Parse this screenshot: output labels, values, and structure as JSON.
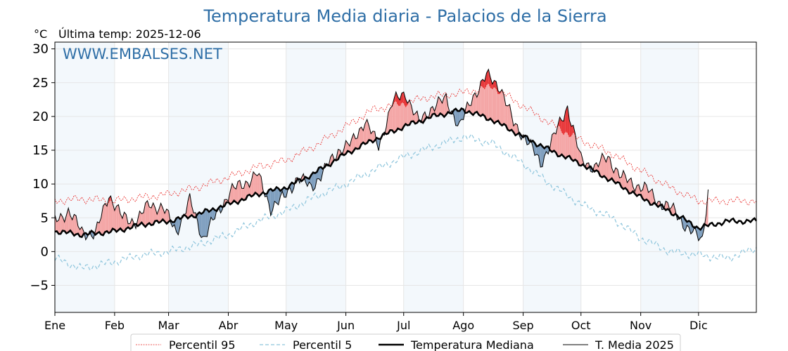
{
  "header": {
    "title": "Temperatura Media diaria - Palacios de la Sierra",
    "unit": "°C",
    "last_temp": "Última temp: 2025-12-06",
    "watermark": "WWW.EMBALSES.NET"
  },
  "colors": {
    "title": "#2e6ea6",
    "p95": "#e8211e",
    "p5": "#8ec5dc",
    "median": "#000000",
    "current": "#000000",
    "above_fill": "#f4a6a6",
    "above_p95_fill": "#e8383a",
    "below_fill": "#7f9fbf",
    "below_p5_fill": "#2a5f93",
    "band": "#f3f8fc"
  },
  "chart_data": {
    "type": "line",
    "title": "Temperatura Media diaria - Palacios de la Sierra",
    "ylabel": "°C",
    "ylim": [
      -9,
      31
    ],
    "yticks": [
      30,
      25,
      20,
      15,
      10,
      5,
      0,
      -5
    ],
    "ytick_labels": [
      "30",
      "25",
      "20",
      "15",
      "10",
      "5",
      "0",
      "−5"
    ],
    "months": [
      "Ene",
      "Feb",
      "Mar",
      "Abr",
      "May",
      "Jun",
      "Jul",
      "Ago",
      "Sep",
      "Oct",
      "Nov",
      "Dic"
    ],
    "month_start_days": [
      1,
      32,
      60,
      91,
      121,
      152,
      182,
      213,
      244,
      274,
      305,
      335
    ],
    "x_range_days": [
      1,
      365
    ],
    "grid": true,
    "legend_position": "bottom",
    "series_knots": {
      "p95": {
        "name": "Percentil 95",
        "days": [
          1,
          15,
          32,
          46,
          60,
          75,
          91,
          106,
          121,
          135,
          152,
          166,
          182,
          197,
          213,
          228,
          244,
          258,
          274,
          290,
          305,
          320,
          335,
          350,
          365
        ],
        "values": [
          7.5,
          7.8,
          7.5,
          8.0,
          8.5,
          9.5,
          11.0,
          12.5,
          13.5,
          15.5,
          18.5,
          21.0,
          22.0,
          23.0,
          23.5,
          24.5,
          21.5,
          19.0,
          16.5,
          14.5,
          12.0,
          9.5,
          7.5,
          7.5,
          7.5
        ]
      },
      "p5": {
        "name": "Percentil 5",
        "days": [
          1,
          15,
          32,
          46,
          60,
          75,
          91,
          106,
          121,
          135,
          152,
          166,
          182,
          197,
          213,
          228,
          244,
          258,
          274,
          290,
          305,
          320,
          335,
          350,
          365
        ],
        "values": [
          -1.0,
          -2.5,
          -1.5,
          -0.5,
          0.0,
          1.0,
          2.5,
          4.5,
          6.0,
          8.0,
          10.0,
          12.0,
          14.0,
          15.5,
          17.0,
          16.0,
          13.0,
          10.0,
          7.0,
          5.0,
          2.0,
          0.0,
          -0.5,
          -1.0,
          0.5
        ]
      },
      "median": {
        "name": "Temperatura Mediana",
        "days": [
          1,
          15,
          32,
          46,
          60,
          75,
          91,
          106,
          121,
          135,
          152,
          166,
          182,
          197,
          213,
          228,
          244,
          258,
          274,
          290,
          305,
          320,
          335,
          350,
          365
        ],
        "values": [
          3.0,
          2.5,
          3.0,
          4.0,
          4.5,
          5.5,
          7.0,
          8.5,
          9.5,
          11.5,
          14.5,
          16.5,
          18.5,
          20.0,
          21.0,
          19.5,
          17.0,
          15.0,
          13.0,
          10.5,
          8.0,
          6.0,
          3.5,
          4.5,
          4.5
        ]
      },
      "current_2025": {
        "name": "T. Media 2025",
        "days": [
          1,
          8,
          15,
          22,
          29,
          36,
          43,
          50,
          57,
          64,
          71,
          78,
          85,
          92,
          99,
          106,
          113,
          120,
          127,
          134,
          141,
          148,
          155,
          162,
          169,
          176,
          183,
          190,
          197,
          204,
          211,
          218,
          225,
          232,
          239,
          246,
          253,
          260,
          267,
          274,
          281,
          288,
          295,
          302,
          309,
          316,
          323,
          330,
          337,
          340
        ],
        "values": [
          4.5,
          6.0,
          3.0,
          2.5,
          8.5,
          5.0,
          4.5,
          7.0,
          6.5,
          3.0,
          7.5,
          2.0,
          5.5,
          9.0,
          10.0,
          11.5,
          6.5,
          8.0,
          11.0,
          9.5,
          12.0,
          15.0,
          16.0,
          19.5,
          15.5,
          22.0,
          23.5,
          19.0,
          21.5,
          22.5,
          18.5,
          23.0,
          26.0,
          24.5,
          19.0,
          16.5,
          13.0,
          17.0,
          21.5,
          13.5,
          12.5,
          14.0,
          11.0,
          10.0,
          9.0,
          7.0,
          6.0,
          3.0,
          2.0,
          9.0
        ]
      }
    },
    "legend": [
      "Percentil 95",
      "Percentil 5",
      "Temperatura Mediana",
      "T. Media 2025"
    ]
  }
}
